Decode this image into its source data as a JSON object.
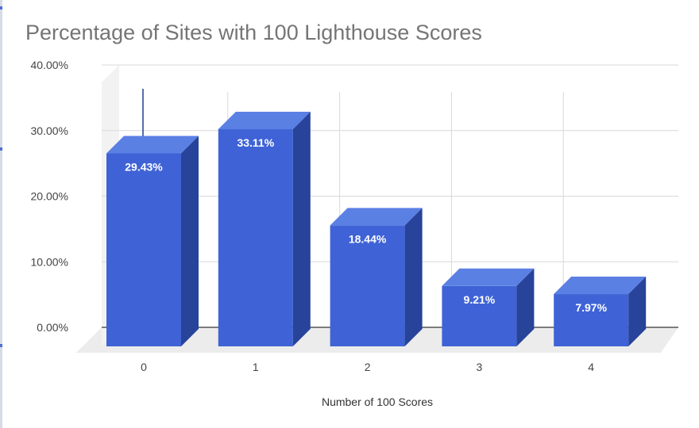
{
  "chart_data": {
    "type": "bar",
    "title": "Percentage of Sites with 100 Lighthouse Scores",
    "xlabel": "Number of 100 Scores",
    "ylabel": "",
    "categories": [
      "0",
      "1",
      "2",
      "3",
      "4"
    ],
    "values": [
      29.43,
      33.11,
      18.44,
      9.21,
      7.97
    ],
    "value_labels": [
      "29.43%",
      "33.11%",
      "18.44%",
      "9.21%",
      "7.97%"
    ],
    "yticks": [
      "0.00%",
      "10.00%",
      "20.00%",
      "30.00%",
      "40.00%"
    ],
    "ylim": [
      0,
      40
    ],
    "grid": true,
    "legend": "none",
    "style": "3d",
    "colors": {
      "front": "#3f63d6",
      "top": "#5b80e4",
      "side": "#27439a",
      "floor": "#ececec",
      "grid": "#d9d9d9",
      "title": "#757575"
    }
  }
}
